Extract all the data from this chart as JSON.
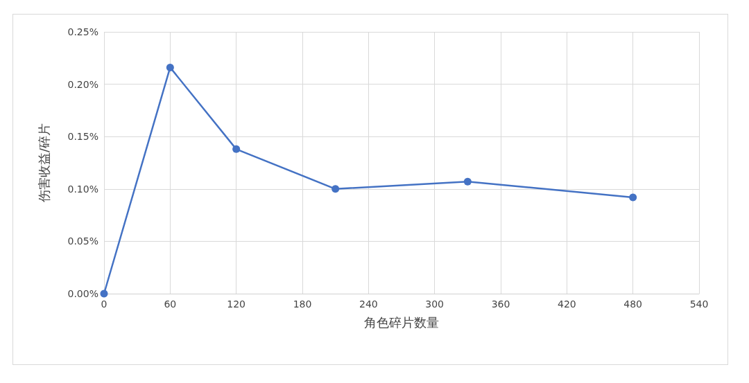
{
  "chart_data": {
    "type": "line",
    "xlabel": "角色碎片数量",
    "ylabel": "伤害收益/碎片",
    "x": [
      0,
      60,
      120,
      210,
      330,
      480
    ],
    "series": [
      {
        "color": "#4472c4",
        "values": [
          0,
          0.216,
          0.138,
          0.1,
          0.107,
          0.092
        ]
      }
    ],
    "xlim": [
      0,
      540
    ],
    "xticks": [
      0,
      60,
      120,
      180,
      240,
      300,
      360,
      420,
      480,
      540
    ],
    "ylim": [
      0,
      0.25
    ],
    "yticks": [
      {
        "value": 0,
        "label": "0.00%"
      },
      {
        "value": 0.05,
        "label": "0.05%"
      },
      {
        "value": 0.1,
        "label": "0.10%"
      },
      {
        "value": 0.15,
        "label": "0.15%"
      },
      {
        "value": 0.2,
        "label": "0.20%"
      },
      {
        "value": 0.25,
        "label": "0.25%"
      }
    ],
    "grid": true,
    "marker": "circle",
    "line_style": "solid"
  }
}
